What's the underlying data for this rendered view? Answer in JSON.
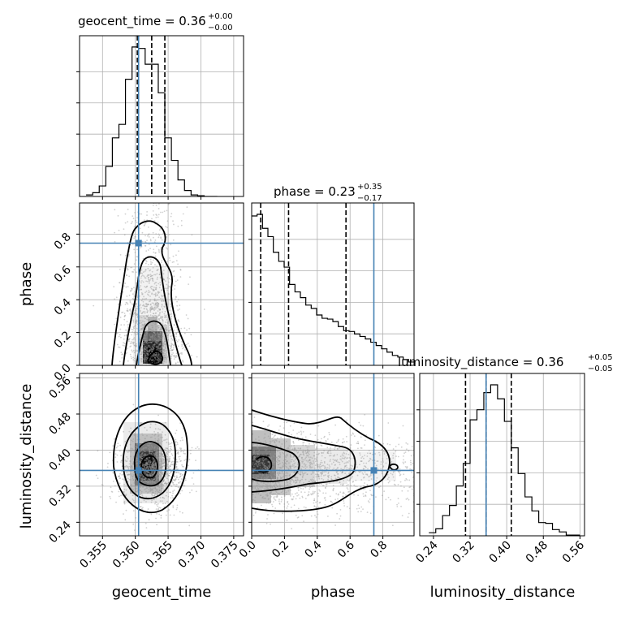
{
  "chart_data": {
    "type": "corner",
    "parameters": [
      "geocent_time",
      "phase",
      "luminosity_distance"
    ],
    "ranges": {
      "geocent_time": [
        0.3515,
        0.3765
      ],
      "phase": [
        0.0,
        0.99
      ],
      "luminosity_distance": [
        0.21,
        0.57
      ]
    },
    "truths": {
      "geocent_time": 0.3605,
      "phase": 0.745,
      "luminosity_distance": 0.355
    },
    "titles": {
      "geocent_time": {
        "text": "geocent_time = 0.36",
        "plus": "+0.00",
        "minus": "−0.00"
      },
      "phase": {
        "text": "phase = 0.23",
        "plus": "+0.35",
        "minus": "−0.17"
      },
      "luminosity_distance": {
        "text": "luminosity_distance = 0.36",
        "plus": "+0.05",
        "minus": "−0.05"
      }
    },
    "quantiles": {
      "geocent_time": [
        0.3603,
        0.3625,
        0.3645
      ],
      "phase": [
        0.055,
        0.225,
        0.575
      ],
      "luminosity_distance": [
        0.31,
        0.355,
        0.41
      ]
    },
    "ticks": {
      "geocent_time": [
        "0.355",
        "0.360",
        "0.365",
        "0.370",
        "0.375"
      ],
      "phase": [
        "0.0",
        "0.2",
        "0.4",
        "0.6",
        "0.8"
      ],
      "luminosity_distance": [
        "0.24",
        "0.32",
        "0.40",
        "0.48",
        "0.56"
      ]
    },
    "histograms": {
      "geocent_time": {
        "edges": [
          0.3525,
          0.3535,
          0.3545,
          0.3555,
          0.3565,
          0.3575,
          0.3585,
          0.3595,
          0.3605,
          0.3615,
          0.3625,
          0.3635,
          0.3645,
          0.3655,
          0.3665,
          0.3675,
          0.3685,
          0.3695,
          0.3705,
          0.3715,
          0.3725
        ],
        "counts": [
          0.01,
          0.025,
          0.07,
          0.2,
          0.39,
          0.48,
          0.78,
          0.995,
          0.985,
          0.88,
          0.88,
          0.69,
          0.39,
          0.24,
          0.11,
          0.04,
          0.01,
          0.005,
          0,
          0
        ]
      },
      "phase": {
        "edges": [
          0.0,
          0.033,
          0.066,
          0.099,
          0.132,
          0.165,
          0.198,
          0.231,
          0.264,
          0.297,
          0.33,
          0.363,
          0.396,
          0.429,
          0.462,
          0.495,
          0.528,
          0.561,
          0.594,
          0.627,
          0.66,
          0.693,
          0.726,
          0.759,
          0.792,
          0.825,
          0.858,
          0.891,
          0.924,
          0.957,
          0.99
        ],
        "counts": [
          0.905,
          0.915,
          0.83,
          0.78,
          0.685,
          0.63,
          0.595,
          0.49,
          0.445,
          0.41,
          0.365,
          0.345,
          0.305,
          0.285,
          0.28,
          0.265,
          0.235,
          0.21,
          0.205,
          0.19,
          0.175,
          0.16,
          0.14,
          0.12,
          0.1,
          0.08,
          0.06,
          0.05,
          0.035,
          0.02
        ]
      },
      "luminosity_distance": {
        "edges": [
          0.23,
          0.245,
          0.26,
          0.275,
          0.29,
          0.305,
          0.32,
          0.335,
          0.35,
          0.365,
          0.38,
          0.395,
          0.41,
          0.425,
          0.44,
          0.455,
          0.47,
          0.485,
          0.5,
          0.515,
          0.53,
          0.545,
          0.56
        ],
        "counts": [
          0.02,
          0.045,
          0.13,
          0.195,
          0.32,
          0.465,
          0.745,
          0.81,
          0.92,
          0.97,
          0.88,
          0.735,
          0.565,
          0.4,
          0.25,
          0.16,
          0.085,
          0.08,
          0.04,
          0.025,
          0.005,
          0.005
        ]
      }
    },
    "joint_peaks": {
      "phase_vs_geocent_time": {
        "x": 0.3615,
        "y": 0.05
      },
      "luminosity_distance_vs_geocent_time": {
        "x": 0.3615,
        "y": 0.355
      },
      "luminosity_distance_vs_phase": {
        "x": 0.04,
        "y": 0.36
      }
    },
    "colors": {
      "truth": "#4682b4",
      "histogram": "#000000",
      "contour": "#000000",
      "grid": "#b0b0b0",
      "scatter": "#9a9a9a"
    },
    "grid": true
  }
}
